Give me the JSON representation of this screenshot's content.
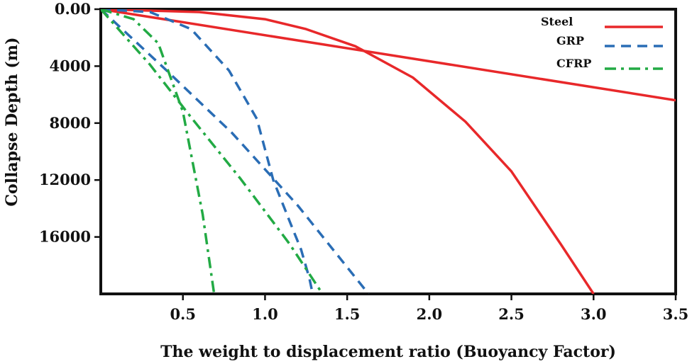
{
  "chart_data": {
    "type": "line",
    "title": "",
    "xlabel": "The weight to displacement ratio (Buoyancy Factor)",
    "ylabel": "Collapse Depth (m)",
    "xlim": [
      0,
      3.5
    ],
    "ylim": [
      0,
      20000
    ],
    "y_inverted": true,
    "grid": false,
    "legend_position": "top-right",
    "xticks": [
      {
        "value": 0.5,
        "label": "0.5"
      },
      {
        "value": 1.0,
        "label": "1.0"
      },
      {
        "value": 1.5,
        "label": "1.5"
      },
      {
        "value": 2.0,
        "label": "2.0"
      },
      {
        "value": 2.5,
        "label": "2.5"
      },
      {
        "value": 3.0,
        "label": "3.0"
      },
      {
        "value": 3.5,
        "label": "3.5"
      }
    ],
    "yticks": [
      {
        "value": 0,
        "label": "0.00"
      },
      {
        "value": 4000,
        "label": "4000"
      },
      {
        "value": 8000,
        "label": "8000"
      },
      {
        "value": 12000,
        "label": "12000"
      },
      {
        "value": 16000,
        "label": "16000"
      }
    ],
    "series": [
      {
        "name": "Steel",
        "style": "solid",
        "color": "#e8282a",
        "x": [
          0,
          3.5
        ],
        "y": [
          0,
          6400
        ]
      },
      {
        "name": "",
        "style": "solid",
        "color": "#e8282a",
        "x": [
          0,
          0.6,
          1.0,
          1.25,
          1.55,
          1.9,
          2.22,
          2.5,
          2.8,
          3.0
        ],
        "y": [
          0,
          200,
          700,
          1400,
          2600,
          4800,
          7900,
          11400,
          16500,
          20000
        ]
      },
      {
        "name": "GRP",
        "style": "dashed",
        "color": "#2a6db5",
        "x": [
          0,
          0.3,
          0.55,
          0.78,
          0.95,
          1.05,
          1.15,
          1.22,
          1.27,
          1.29
        ],
        "y": [
          0,
          200,
          1400,
          4300,
          7700,
          12000,
          14900,
          16900,
          18900,
          20000
        ]
      },
      {
        "name": "",
        "style": "dashed",
        "color": "#2a6db5",
        "x": [
          0,
          0.4,
          0.8,
          1.2,
          1.63
        ],
        "y": [
          0,
          4300,
          8700,
          13800,
          20000
        ]
      },
      {
        "name": "CFRP",
        "style": "dashdot",
        "color": "#22aa44",
        "x": [
          0,
          0.2,
          0.35,
          0.5,
          0.62,
          0.69
        ],
        "y": [
          0,
          700,
          2400,
          7200,
          14400,
          20000
        ]
      },
      {
        "name": "",
        "style": "dashdot",
        "color": "#22aa44",
        "x": [
          0,
          0.3,
          0.55,
          0.85,
          1.15,
          1.35
        ],
        "y": [
          0,
          3900,
          7600,
          11900,
          16500,
          20000
        ]
      }
    ]
  }
}
